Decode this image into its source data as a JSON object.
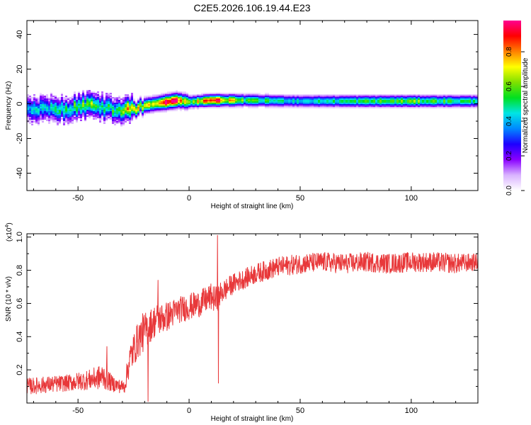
{
  "figure": {
    "title": "C2E5.2026.106.19.44.E23"
  },
  "chart_data": [
    {
      "type": "heatmap",
      "xlabel": "Height of straight line (km)",
      "ylabel": "Frequency (Hz)",
      "xlim": [
        -73,
        130
      ],
      "ylim": [
        -50,
        48
      ],
      "x_ticks": [
        -50,
        0,
        50,
        100
      ],
      "y_ticks": [
        -40,
        -20,
        0,
        20,
        40
      ],
      "grid": false,
      "colorbar": {
        "label": "Normalized spectral amplitude",
        "range": [
          0,
          0.98
        ],
        "ticks": [
          "0.0",
          "0.2",
          "0.4",
          "0.6",
          "0.8"
        ],
        "colormap": [
          "#ffffff",
          "#d9b3ff",
          "#8a00ff",
          "#1e00ff",
          "#0088ff",
          "#00e5e5",
          "#00e020",
          "#7fe000",
          "#ffff00",
          "#ff8000",
          "#ff0000",
          "#ff0090"
        ]
      },
      "ridge": {
        "x": [
          -73,
          -65,
          -55,
          -50,
          -45,
          -40,
          -35,
          -30,
          -25,
          -20,
          -15,
          -10,
          -5,
          0,
          10,
          25,
          50,
          100,
          130
        ],
        "y": [
          -4,
          -3,
          -3,
          -2,
          -1,
          -2,
          -3,
          -4,
          -3,
          -1,
          0,
          1,
          2,
          1,
          2,
          2,
          1.5,
          1.5,
          1.5
        ],
        "peak_amplitude": [
          0.35,
          0.42,
          0.45,
          0.48,
          0.55,
          0.5,
          0.45,
          0.6,
          0.75,
          0.7,
          0.85,
          0.95,
          0.9,
          0.6,
          0.95,
          0.55,
          0.45,
          0.6,
          0.5
        ]
      }
    },
    {
      "type": "line",
      "xlabel": "Height of straight line (km)",
      "ylabel": "SNR (10 * v/v)",
      "y_multiplier": "(x10",
      "y_multiplier_exponent": "4",
      "y_multiplier_close": ")",
      "xlim": [
        -73,
        130
      ],
      "ylim": [
        0,
        1.02
      ],
      "x_ticks": [
        -50,
        0,
        50,
        100
      ],
      "y_ticks": [
        0.2,
        0.4,
        0.6,
        0.8,
        1.0
      ],
      "grid": false,
      "series": [
        {
          "color": "#e8383a",
          "envelope_x": [
            -73,
            -65,
            -55,
            -45,
            -38,
            -35,
            -31,
            -29,
            -27,
            -25,
            -23,
            -21,
            -18,
            -15,
            -10,
            -5,
            0,
            5,
            10,
            12,
            15,
            20,
            25,
            30,
            40,
            50,
            60,
            70,
            80,
            90,
            100,
            110,
            120,
            130
          ],
          "envelope_y": [
            0.1,
            0.11,
            0.12,
            0.14,
            0.16,
            0.12,
            0.1,
            0.1,
            0.25,
            0.32,
            0.38,
            0.42,
            0.46,
            0.5,
            0.52,
            0.56,
            0.58,
            0.6,
            0.64,
            0.62,
            0.67,
            0.72,
            0.75,
            0.78,
            0.82,
            0.84,
            0.85,
            0.84,
            0.85,
            0.84,
            0.85,
            0.85,
            0.84,
            0.85
          ],
          "noise_amplitude": [
            0.05,
            0.05,
            0.05,
            0.06,
            0.08,
            0.05,
            0.04,
            0.04,
            0.1,
            0.1,
            0.11,
            0.12,
            0.1,
            0.1,
            0.09,
            0.08,
            0.08,
            0.08,
            0.08,
            0.08,
            0.07,
            0.06,
            0.06,
            0.06,
            0.06,
            0.06,
            0.06,
            0.06,
            0.06,
            0.06,
            0.06,
            0.06,
            0.06,
            0.05
          ],
          "spikes": [
            {
              "x": 12.8,
              "y": 1.01
            },
            {
              "x": 13.2,
              "y": 0.12
            },
            {
              "x": -18.5,
              "y": 0.01
            },
            {
              "x": -37,
              "y": 0.34
            },
            {
              "x": -14,
              "y": 0.74
            }
          ]
        }
      ]
    }
  ]
}
